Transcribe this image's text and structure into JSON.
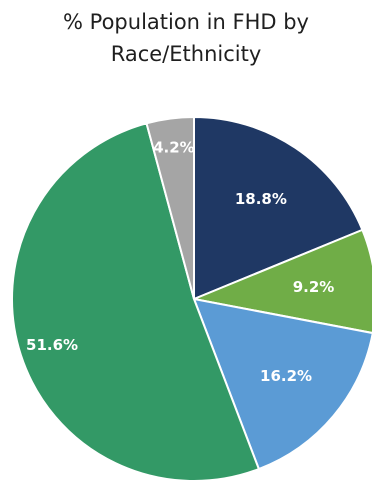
{
  "chart_data": {
    "type": "pie",
    "title_lines": [
      "% Population in FHD by",
      "Race/Ethnicity"
    ],
    "start_angle_deg": 0,
    "direction": "clockwise",
    "slices": [
      {
        "value": 18.8,
        "label": "18.8%",
        "color": "#1f3864"
      },
      {
        "value": 9.2,
        "label": "9.2%",
        "color": "#70ad47"
      },
      {
        "value": 16.2,
        "label": "16.2%",
        "color": "#5b9bd5"
      },
      {
        "value": 51.6,
        "label": "51.6%",
        "color": "#339966"
      },
      {
        "value": 4.2,
        "label": "4.2%",
        "color": "#a5a5a5"
      }
    ],
    "legend": "none"
  }
}
